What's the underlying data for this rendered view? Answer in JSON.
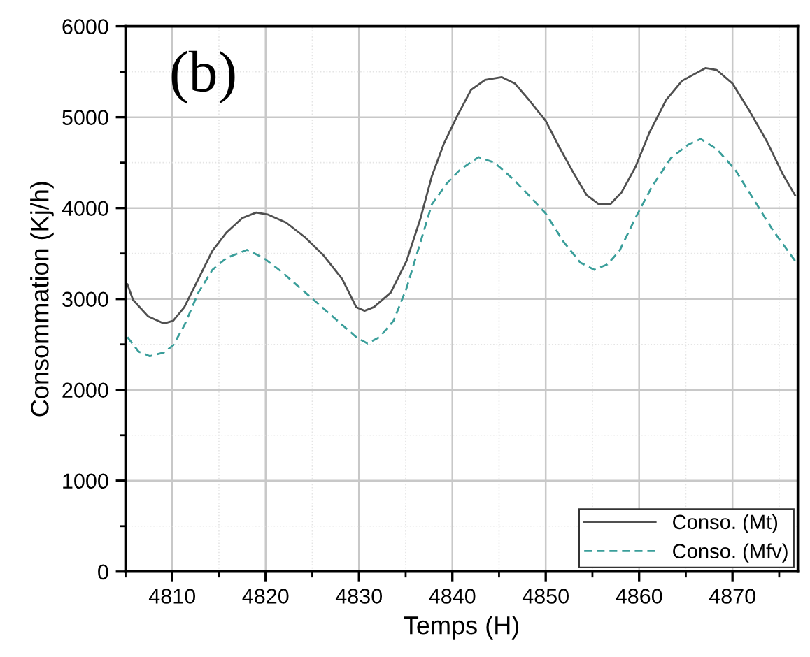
{
  "chart_data": {
    "type": "line",
    "xlabel": "Temps (H)",
    "ylabel": "Consommation (Kj/h)",
    "annotations": [
      "(b)"
    ],
    "xlim": [
      4805,
      4877
    ],
    "ylim": [
      0,
      6000
    ],
    "xticks": [
      {
        "value": 4805,
        "label": null
      },
      4810,
      {
        "value": 4815,
        "label": null
      },
      4820,
      {
        "value": 4825,
        "label": null
      },
      4830,
      {
        "value": 4835,
        "label": null
      },
      4840,
      {
        "value": 4845,
        "label": null
      },
      4850,
      {
        "value": 4855,
        "label": null
      },
      4860,
      {
        "value": 4865,
        "label": null
      },
      4870,
      {
        "value": 4875,
        "label": null
      }
    ],
    "yticks": [
      0,
      {
        "value": 500,
        "label": null
      },
      1000,
      {
        "value": 1500,
        "label": null
      },
      2000,
      {
        "value": 2500,
        "label": null
      },
      3000,
      {
        "value": 3500,
        "label": null
      },
      4000,
      {
        "value": 4500,
        "label": null
      },
      5000,
      {
        "value": 5500,
        "label": null
      },
      6000
    ],
    "grid": true,
    "legend": "bottom right",
    "series": [
      {
        "name": "Conso. (Mt)",
        "color": "#505050",
        "line_style": "solid",
        "x": [
          4805.2,
          4805.8,
          4807.4,
          4809.1,
          4810.1,
          4811.3,
          4812.8,
          4814.3,
          4815.8,
          4817.5,
          4819.0,
          4820.2,
          4822.2,
          4824.2,
          4826.2,
          4828.2,
          4829.7,
          4830.6,
          4831.6,
          4833.4,
          4835.1,
          4836.6,
          4837.8,
          4839.1,
          4840.5,
          4842.0,
          4843.5,
          4845.3,
          4846.7,
          4848.2,
          4850.0,
          4851.4,
          4852.9,
          4854.4,
          4855.7,
          4856.9,
          4858.1,
          4859.6,
          4861.1,
          4862.9,
          4864.6,
          4867.1,
          4868.3,
          4870.0,
          4871.7,
          4873.7,
          4875.4,
          4876.7
        ],
        "values": [
          3160,
          2990,
          2810,
          2730,
          2760,
          2910,
          3220,
          3530,
          3730,
          3890,
          3950,
          3930,
          3840,
          3680,
          3480,
          3220,
          2910,
          2870,
          2910,
          3070,
          3420,
          3890,
          4350,
          4710,
          5010,
          5300,
          5410,
          5440,
          5370,
          5190,
          4960,
          4680,
          4400,
          4140,
          4040,
          4040,
          4170,
          4450,
          4830,
          5190,
          5400,
          5540,
          5520,
          5370,
          5090,
          4730,
          4370,
          4140
        ]
      },
      {
        "name": "Conso. (Mfv)",
        "color": "#3a9e9a",
        "line_style": "dashed",
        "x": [
          4805.2,
          4806.4,
          4807.6,
          4809.1,
          4810.1,
          4811.3,
          4812.8,
          4814.3,
          4815.8,
          4818.0,
          4819.8,
          4821.7,
          4823.7,
          4825.7,
          4827.7,
          4829.7,
          4830.9,
          4832.2,
          4833.7,
          4835.1,
          4836.6,
          4837.8,
          4839.4,
          4840.8,
          4842.8,
          4844.5,
          4846.5,
          4848.2,
          4850.0,
          4851.9,
          4853.7,
          4855.2,
          4856.6,
          4857.9,
          4859.6,
          4861.4,
          4863.4,
          4865.3,
          4866.6,
          4868.3,
          4870.3,
          4872.3,
          4874.3,
          4876.7
        ],
        "values": [
          2580,
          2420,
          2370,
          2410,
          2490,
          2710,
          3070,
          3320,
          3450,
          3540,
          3450,
          3300,
          3120,
          2940,
          2760,
          2580,
          2510,
          2580,
          2760,
          3120,
          3630,
          4040,
          4270,
          4420,
          4560,
          4500,
          4320,
          4140,
          3940,
          3630,
          3400,
          3320,
          3380,
          3530,
          3890,
          4240,
          4550,
          4700,
          4760,
          4650,
          4420,
          4090,
          3760,
          3420
        ]
      }
    ]
  }
}
